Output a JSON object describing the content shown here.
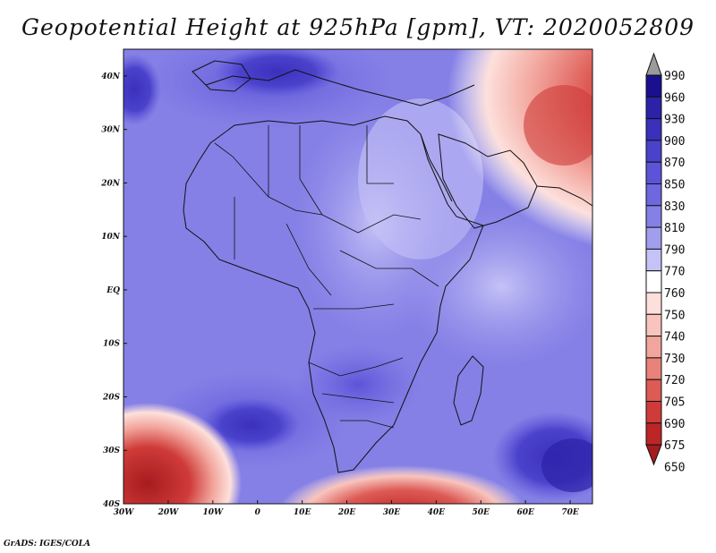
{
  "title": "Geopotential Height at 925hPa [gpm], VT: 2020052809",
  "credit": "GrADS: IGES/COLA",
  "map": {
    "lon_range": [
      -30,
      75
    ],
    "lat_range": [
      -40,
      45
    ],
    "lon_ticks": [
      "30W",
      "20W",
      "10W",
      "0",
      "10E",
      "20E",
      "30E",
      "40E",
      "50E",
      "60E",
      "70E"
    ],
    "lat_ticks": [
      "40S",
      "30S",
      "20S",
      "10S",
      "EQ",
      "10N",
      "20N",
      "30N",
      "40N"
    ]
  },
  "colorbar": {
    "labels": [
      "990",
      "960",
      "930",
      "900",
      "870",
      "850",
      "830",
      "810",
      "790",
      "770",
      "760",
      "750",
      "740",
      "730",
      "720",
      "705",
      "690",
      "675",
      "650"
    ],
    "colors": [
      "#9b9b9b",
      "#1a0f8f",
      "#2c22a8",
      "#3a30bc",
      "#4b42cc",
      "#5c54d8",
      "#6e68e0",
      "#8580e6",
      "#a19eee",
      "#c4c2f6",
      "#ffffff",
      "#fde0dc",
      "#f8c4bd",
      "#f2a59c",
      "#e9827a",
      "#dd5a55",
      "#cf3b39",
      "#bd2526",
      "#a61b1f"
    ]
  }
}
